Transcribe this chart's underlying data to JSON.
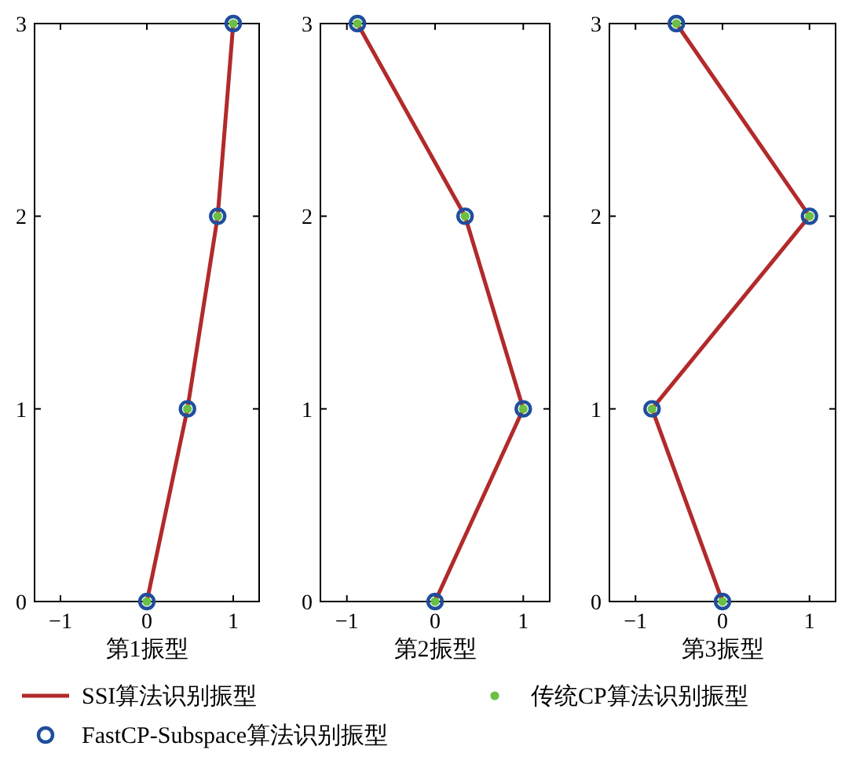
{
  "chart_data": [
    {
      "type": "line",
      "xlabel": "第1振型",
      "xlim": [
        -1.3,
        1.3
      ],
      "ylim": [
        0,
        3
      ],
      "xticks": [
        -1,
        0,
        1
      ],
      "yticks": [
        0,
        1,
        2,
        3
      ],
      "legend": "bottom",
      "series": [
        {
          "name": "SSI算法识别振型",
          "color": "#b22a2a",
          "line_style": "solid",
          "x": [
            0,
            0.47,
            0.82,
            1
          ],
          "values": [
            0,
            1,
            2,
            3
          ]
        },
        {
          "type": "scatter",
          "name": "FastCP-Subspace算法识别振型",
          "color": "#1f4e9c",
          "marker": "circle",
          "x": [
            0,
            0.47,
            0.82,
            1
          ],
          "values": [
            0,
            1,
            2,
            3
          ]
        },
        {
          "type": "scatter",
          "name": "传统CP算法识别振型",
          "color": "#6abf45",
          "marker": "circle",
          "x": [
            0,
            0.47,
            0.82,
            1
          ],
          "values": [
            0,
            1,
            2,
            3
          ]
        }
      ]
    },
    {
      "type": "line",
      "xlabel": "第2振型",
      "xlim": [
        -1.3,
        1.3
      ],
      "ylim": [
        0,
        3
      ],
      "xticks": [
        -1,
        0,
        1
      ],
      "yticks": [
        0,
        1,
        2,
        3
      ],
      "series": [
        {
          "color": "#b22a2a",
          "line_style": "solid",
          "x": [
            0,
            1,
            0.34,
            -0.88
          ],
          "values": [
            0,
            1,
            2,
            3
          ]
        },
        {
          "type": "scatter",
          "color": "#1f4e9c",
          "marker": "circle",
          "x": [
            0,
            1,
            0.34,
            -0.88
          ],
          "values": [
            0,
            1,
            2,
            3
          ]
        },
        {
          "type": "scatter",
          "color": "#6abf45",
          "marker": "circle",
          "x": [
            0,
            1,
            0.34,
            -0.88
          ],
          "values": [
            0,
            1,
            2,
            3
          ]
        }
      ]
    },
    {
      "type": "line",
      "xlabel": "第3振型",
      "xlim": [
        -1.3,
        1.3
      ],
      "ylim": [
        0,
        3
      ],
      "xticks": [
        -1,
        0,
        1
      ],
      "yticks": [
        0,
        1,
        2,
        3
      ],
      "series": [
        {
          "color": "#b22a2a",
          "line_style": "solid",
          "x": [
            0,
            -0.81,
            1,
            -0.53
          ],
          "values": [
            0,
            1,
            2,
            3
          ]
        },
        {
          "type": "scatter",
          "color": "#1f4e9c",
          "marker": "circle",
          "x": [
            0,
            -0.81,
            1,
            -0.53
          ],
          "values": [
            0,
            1,
            2,
            3
          ]
        },
        {
          "type": "scatter",
          "color": "#6abf45",
          "marker": "circle",
          "x": [
            0,
            -0.81,
            1,
            -0.53
          ],
          "values": [
            0,
            1,
            2,
            3
          ]
        }
      ]
    }
  ]
}
